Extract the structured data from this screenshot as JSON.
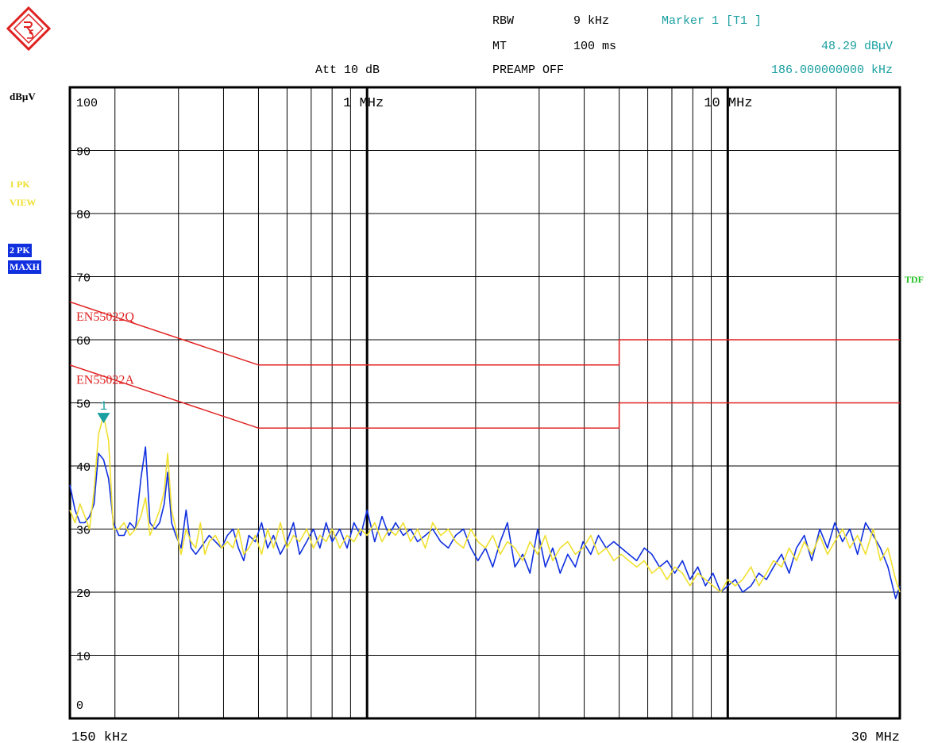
{
  "header": {
    "rbw_label": "RBW",
    "rbw_value": "9 kHz",
    "mt_label": "MT",
    "mt_value": "100 ms",
    "preamp": "PREAMP OFF",
    "att": "Att 10 dB",
    "marker_title": "Marker 1 [T1 ]",
    "marker_level": "48.29 dBµV",
    "marker_freq": "186.000000000 kHz"
  },
  "side": {
    "unit": "dBµV",
    "trace1_line1": "1 PK",
    "trace1_line2": "VIEW",
    "trace2_line1": "2 PK",
    "trace2_line2": "MAXH",
    "tdf": "TDF"
  },
  "colors": {
    "trace1": "#f0e030",
    "trace2": "#1030e0",
    "limit": "#e02020",
    "marker": "#1a9fa0",
    "tdf": "#20c020"
  },
  "chart_data": {
    "type": "line",
    "xscale": "log",
    "xlim_hz": [
      150000,
      30000000
    ],
    "ylim": [
      0,
      100
    ],
    "yticks": [
      "100",
      "90",
      "80",
      "70",
      "60",
      "50",
      "40",
      "30",
      "20",
      "10",
      "0"
    ],
    "xlabel_left": "150 kHz",
    "xlabel_right": "30 MHz",
    "decade_labels": [
      {
        "hz": 1000000,
        "label": "1 MHz"
      },
      {
        "hz": 10000000,
        "label": "10 MHz"
      }
    ],
    "grid": true,
    "limits": [
      {
        "name": "EN55022Q",
        "points": [
          [
            150000,
            66
          ],
          [
            500000,
            56
          ],
          [
            5000000,
            56
          ],
          [
            5000000,
            60
          ],
          [
            30000000,
            60
          ]
        ]
      },
      {
        "name": "EN55022A",
        "points": [
          [
            150000,
            56
          ],
          [
            500000,
            46
          ],
          [
            5000000,
            46
          ],
          [
            5000000,
            50
          ],
          [
            30000000,
            50
          ]
        ]
      }
    ],
    "marker": {
      "label": "1",
      "hz": 186000,
      "level": 48.29
    },
    "series": [
      {
        "trace": "2",
        "points": [
          [
            150000,
            37
          ],
          [
            155000,
            33
          ],
          [
            160000,
            31
          ],
          [
            165000,
            31
          ],
          [
            170000,
            32
          ],
          [
            175000,
            34
          ],
          [
            180000,
            42
          ],
          [
            186000,
            41
          ],
          [
            192000,
            38
          ],
          [
            198000,
            31
          ],
          [
            205000,
            29
          ],
          [
            212000,
            29
          ],
          [
            220000,
            31
          ],
          [
            228000,
            30
          ],
          [
            236000,
            38
          ],
          [
            243000,
            43
          ],
          [
            250000,
            31
          ],
          [
            258000,
            30
          ],
          [
            266000,
            31
          ],
          [
            274000,
            34
          ],
          [
            280000,
            39
          ],
          [
            287000,
            31
          ],
          [
            295000,
            29
          ],
          [
            305000,
            27
          ],
          [
            315000,
            33
          ],
          [
            325000,
            27
          ],
          [
            335000,
            26
          ],
          [
            345000,
            27
          ],
          [
            355000,
            28
          ],
          [
            365000,
            29
          ],
          [
            380000,
            28
          ],
          [
            395000,
            27
          ],
          [
            410000,
            29
          ],
          [
            425000,
            30
          ],
          [
            440000,
            27
          ],
          [
            455000,
            25
          ],
          [
            470000,
            29
          ],
          [
            490000,
            28
          ],
          [
            510000,
            31
          ],
          [
            530000,
            27
          ],
          [
            550000,
            29
          ],
          [
            575000,
            26
          ],
          [
            600000,
            28
          ],
          [
            625000,
            31
          ],
          [
            650000,
            26
          ],
          [
            680000,
            28
          ],
          [
            710000,
            30
          ],
          [
            740000,
            27
          ],
          [
            770000,
            31
          ],
          [
            800000,
            28
          ],
          [
            840000,
            30
          ],
          [
            880000,
            27
          ],
          [
            920000,
            31
          ],
          [
            960000,
            29
          ],
          [
            1000000,
            33
          ],
          [
            1050000,
            28
          ],
          [
            1100000,
            32
          ],
          [
            1150000,
            29
          ],
          [
            1200000,
            31
          ],
          [
            1260000,
            29
          ],
          [
            1320000,
            30
          ],
          [
            1380000,
            28
          ],
          [
            1450000,
            29
          ],
          [
            1520000,
            30
          ],
          [
            1600000,
            28
          ],
          [
            1680000,
            27
          ],
          [
            1760000,
            29
          ],
          [
            1850000,
            30
          ],
          [
            1940000,
            27
          ],
          [
            2030000,
            25
          ],
          [
            2130000,
            27
          ],
          [
            2230000,
            24
          ],
          [
            2340000,
            28
          ],
          [
            2450000,
            31
          ],
          [
            2570000,
            24
          ],
          [
            2700000,
            26
          ],
          [
            2830000,
            23
          ],
          [
            2970000,
            30
          ],
          [
            3120000,
            24
          ],
          [
            3270000,
            27
          ],
          [
            3430000,
            23
          ],
          [
            3600000,
            26
          ],
          [
            3780000,
            24
          ],
          [
            3970000,
            28
          ],
          [
            4170000,
            26
          ],
          [
            4380000,
            29
          ],
          [
            4600000,
            27
          ],
          [
            4830000,
            28
          ],
          [
            5070000,
            27
          ],
          [
            5320000,
            26
          ],
          [
            5590000,
            25
          ],
          [
            5870000,
            27
          ],
          [
            6160000,
            26
          ],
          [
            6470000,
            24
          ],
          [
            6790000,
            25
          ],
          [
            7130000,
            23
          ],
          [
            7490000,
            25
          ],
          [
            7860000,
            22
          ],
          [
            8260000,
            24
          ],
          [
            8670000,
            21
          ],
          [
            9100000,
            23
          ],
          [
            9560000,
            20
          ],
          [
            10000000,
            21
          ],
          [
            10500000,
            22
          ],
          [
            11000000,
            20
          ],
          [
            11600000,
            21
          ],
          [
            12200000,
            23
          ],
          [
            12800000,
            22
          ],
          [
            13400000,
            24
          ],
          [
            14100000,
            26
          ],
          [
            14800000,
            23
          ],
          [
            15500000,
            27
          ],
          [
            16300000,
            29
          ],
          [
            17100000,
            25
          ],
          [
            18000000,
            30
          ],
          [
            18900000,
            27
          ],
          [
            19800000,
            31
          ],
          [
            20800000,
            28
          ],
          [
            21800000,
            30
          ],
          [
            22900000,
            26
          ],
          [
            24100000,
            31
          ],
          [
            25300000,
            29
          ],
          [
            26500000,
            27
          ],
          [
            27800000,
            24
          ],
          [
            29200000,
            19
          ],
          [
            30000000,
            21
          ]
        ]
      },
      {
        "trace": "1",
        "points": [
          [
            150000,
            33
          ],
          [
            155000,
            31
          ],
          [
            160000,
            34
          ],
          [
            165000,
            32
          ],
          [
            170000,
            30
          ],
          [
            175000,
            36
          ],
          [
            180000,
            45
          ],
          [
            186000,
            48
          ],
          [
            192000,
            44
          ],
          [
            198000,
            30
          ],
          [
            205000,
            30
          ],
          [
            212000,
            31
          ],
          [
            220000,
            29
          ],
          [
            228000,
            30
          ],
          [
            236000,
            32
          ],
          [
            243000,
            35
          ],
          [
            250000,
            29
          ],
          [
            258000,
            31
          ],
          [
            266000,
            33
          ],
          [
            274000,
            36
          ],
          [
            280000,
            42
          ],
          [
            287000,
            33
          ],
          [
            295000,
            30
          ],
          [
            305000,
            26
          ],
          [
            315000,
            30
          ],
          [
            325000,
            28
          ],
          [
            335000,
            27
          ],
          [
            345000,
            31
          ],
          [
            355000,
            26
          ],
          [
            365000,
            28
          ],
          [
            380000,
            29
          ],
          [
            395000,
            27
          ],
          [
            410000,
            28
          ],
          [
            425000,
            27
          ],
          [
            440000,
            30
          ],
          [
            455000,
            26
          ],
          [
            470000,
            27
          ],
          [
            490000,
            29
          ],
          [
            510000,
            26
          ],
          [
            530000,
            30
          ],
          [
            550000,
            27
          ],
          [
            575000,
            31
          ],
          [
            600000,
            27
          ],
          [
            625000,
            29
          ],
          [
            650000,
            28
          ],
          [
            680000,
            30
          ],
          [
            710000,
            27
          ],
          [
            740000,
            29
          ],
          [
            770000,
            28
          ],
          [
            800000,
            30
          ],
          [
            840000,
            27
          ],
          [
            880000,
            29
          ],
          [
            920000,
            28
          ],
          [
            960000,
            30
          ],
          [
            1000000,
            29
          ],
          [
            1050000,
            31
          ],
          [
            1100000,
            28
          ],
          [
            1150000,
            30
          ],
          [
            1200000,
            29
          ],
          [
            1260000,
            31
          ],
          [
            1320000,
            28
          ],
          [
            1380000,
            30
          ],
          [
            1450000,
            27
          ],
          [
            1520000,
            31
          ],
          [
            1600000,
            29
          ],
          [
            1680000,
            30
          ],
          [
            1760000,
            28
          ],
          [
            1850000,
            27
          ],
          [
            1940000,
            30
          ],
          [
            2030000,
            28
          ],
          [
            2130000,
            27
          ],
          [
            2230000,
            29
          ],
          [
            2340000,
            26
          ],
          [
            2450000,
            28
          ],
          [
            2570000,
            27
          ],
          [
            2700000,
            25
          ],
          [
            2830000,
            28
          ],
          [
            2970000,
            26
          ],
          [
            3120000,
            29
          ],
          [
            3270000,
            25
          ],
          [
            3430000,
            27
          ],
          [
            3600000,
            28
          ],
          [
            3780000,
            26
          ],
          [
            3970000,
            27
          ],
          [
            4170000,
            29
          ],
          [
            4380000,
            26
          ],
          [
            4600000,
            27
          ],
          [
            4830000,
            25
          ],
          [
            5070000,
            26
          ],
          [
            5320000,
            25
          ],
          [
            5590000,
            24
          ],
          [
            5870000,
            25
          ],
          [
            6160000,
            23
          ],
          [
            6470000,
            24
          ],
          [
            6790000,
            22
          ],
          [
            7130000,
            24
          ],
          [
            7490000,
            23
          ],
          [
            7860000,
            21
          ],
          [
            8260000,
            23
          ],
          [
            8670000,
            22
          ],
          [
            9100000,
            21
          ],
          [
            9560000,
            20
          ],
          [
            10000000,
            22
          ],
          [
            10500000,
            21
          ],
          [
            11000000,
            22
          ],
          [
            11600000,
            24
          ],
          [
            12200000,
            21
          ],
          [
            12800000,
            23
          ],
          [
            13400000,
            25
          ],
          [
            14100000,
            24
          ],
          [
            14800000,
            27
          ],
          [
            15500000,
            25
          ],
          [
            16300000,
            28
          ],
          [
            17100000,
            26
          ],
          [
            18000000,
            29
          ],
          [
            18900000,
            26
          ],
          [
            19800000,
            28
          ],
          [
            20800000,
            30
          ],
          [
            21800000,
            27
          ],
          [
            22900000,
            29
          ],
          [
            24100000,
            26
          ],
          [
            25300000,
            30
          ],
          [
            26500000,
            25
          ],
          [
            27800000,
            27
          ],
          [
            29200000,
            22
          ],
          [
            30000000,
            20
          ]
        ]
      }
    ]
  }
}
